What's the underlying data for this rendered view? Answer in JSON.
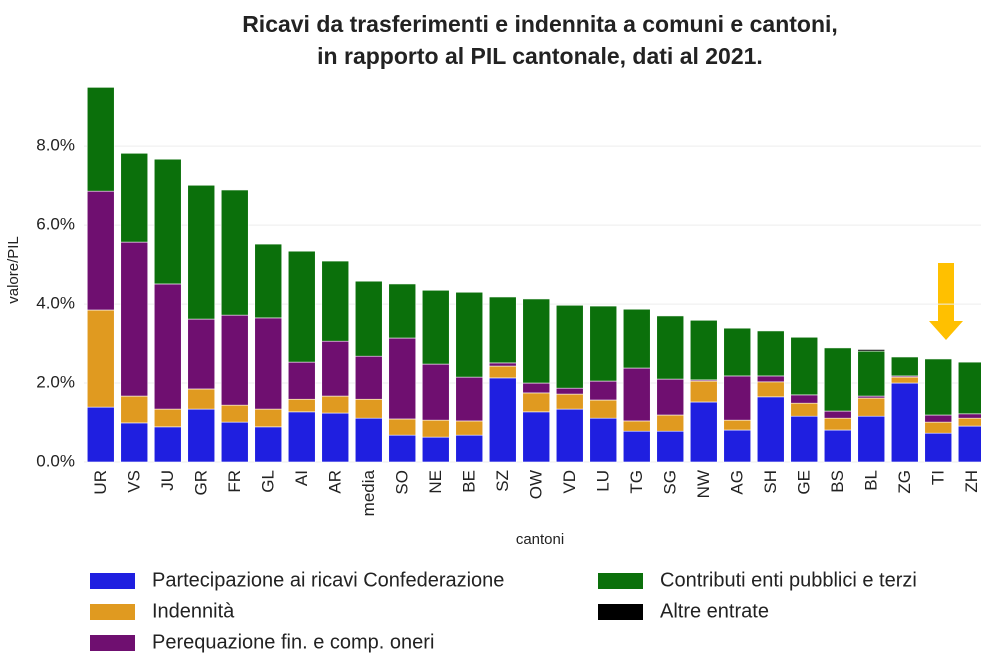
{
  "chart_data": {
    "type": "stacked_bar",
    "title": [
      "Ricavi da trasferimenti e indennita a comuni e cantoni,",
      "in rapporto al PIL cantonale, dati al 2021."
    ],
    "x_label": "cantoni",
    "y_label": "valore/PIL",
    "categories": [
      "UR",
      "VS",
      "JU",
      "GR",
      "FR",
      "GL",
      "AI",
      "AR",
      "media",
      "SO",
      "NE",
      "BE",
      "SZ",
      "OW",
      "VD",
      "LU",
      "TG",
      "SG",
      "NW",
      "AG",
      "SH",
      "GE",
      "BS",
      "BL",
      "ZG",
      "TI",
      "ZH"
    ],
    "series": [
      {
        "name": "Partecipazione ai ricavi Confederazione",
        "color": "#1f1fe0",
        "values": [
          1.39,
          0.99,
          0.89,
          1.34,
          1.01,
          0.89,
          1.27,
          1.24,
          1.11,
          0.68,
          0.63,
          0.68,
          2.13,
          1.27,
          1.34,
          1.11,
          0.78,
          0.78,
          1.52,
          0.81,
          1.65,
          1.16,
          0.81,
          1.16,
          2.0,
          0.73,
          0.91
        ]
      },
      {
        "name": "Indennità",
        "color": "#e09a20",
        "values": [
          2.46,
          0.68,
          0.45,
          0.51,
          0.43,
          0.45,
          0.32,
          0.43,
          0.48,
          0.41,
          0.43,
          0.36,
          0.3,
          0.48,
          0.38,
          0.46,
          0.26,
          0.41,
          0.53,
          0.25,
          0.38,
          0.33,
          0.3,
          0.46,
          0.15,
          0.28,
          0.2
        ]
      },
      {
        "name": "Perequazione fin. e comp. oneri",
        "color": "#6f0f70",
        "values": [
          3.01,
          3.9,
          3.17,
          1.77,
          2.28,
          2.31,
          0.94,
          1.39,
          1.09,
          2.05,
          1.42,
          1.11,
          0.08,
          0.25,
          0.15,
          0.48,
          1.34,
          0.91,
          0.03,
          1.12,
          0.15,
          0.21,
          0.18,
          0.05,
          0.03,
          0.18,
          0.11
        ]
      },
      {
        "name": "Contributi enti pubblici e terzi",
        "color": "#0b700b",
        "values": [
          2.63,
          2.25,
          3.16,
          3.39,
          3.17,
          1.87,
          2.81,
          2.03,
          1.9,
          1.37,
          1.87,
          2.15,
          1.67,
          2.13,
          2.1,
          1.9,
          1.49,
          1.6,
          1.51,
          1.21,
          1.14,
          1.46,
          1.6,
          1.14,
          0.48,
          1.42,
          1.31
        ]
      },
      {
        "name": "Altre entrate",
        "color": "#000000",
        "values": [
          0,
          0,
          0,
          0,
          0,
          0,
          0,
          0,
          0,
          0,
          0,
          0,
          0,
          0,
          0,
          0,
          0,
          0,
          0,
          0,
          0,
          0,
          0,
          0.04,
          0,
          0,
          0
        ]
      }
    ],
    "ylim": [
      0,
      9.6
    ],
    "yticks": [
      {
        "value": 0,
        "label": "0.0%"
      },
      {
        "value": 2,
        "label": "2.0%"
      },
      {
        "value": 4,
        "label": "4.0%"
      },
      {
        "value": 6,
        "label": "6.0%"
      },
      {
        "value": 8,
        "label": "8.0%"
      }
    ],
    "grid": true
  }
}
